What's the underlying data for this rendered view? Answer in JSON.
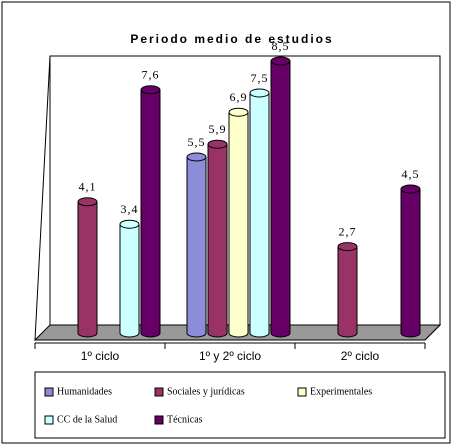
{
  "chart_data": {
    "type": "bar",
    "title": "Periodo medio de estudios",
    "categories": [
      "1º ciclo",
      "1º y 2º ciclo",
      "2º ciclo"
    ],
    "series": [
      {
        "name": "Humanidades",
        "color": "#8c8cd9",
        "values": [
          null,
          5.5,
          null
        ],
        "value_labels": [
          null,
          "5,5",
          null
        ]
      },
      {
        "name": "Sociales y jurídicas",
        "color": "#993366",
        "values": [
          4.1,
          5.9,
          2.7
        ],
        "value_labels": [
          "4,1",
          "5,9",
          "2,7"
        ]
      },
      {
        "name": "Experimentales",
        "color": "#ffffcc",
        "values": [
          null,
          6.9,
          null
        ],
        "value_labels": [
          null,
          "6,9",
          null
        ]
      },
      {
        "name": "CC de la Salud",
        "color": "#ccffff",
        "values": [
          3.4,
          7.5,
          null
        ],
        "value_labels": [
          "3,4",
          "7,5",
          null
        ]
      },
      {
        "name": "Técnicas",
        "color": "#660066",
        "values": [
          7.6,
          8.5,
          4.5
        ],
        "value_labels": [
          "7,6",
          "8,5",
          "4,5"
        ]
      }
    ]
  }
}
